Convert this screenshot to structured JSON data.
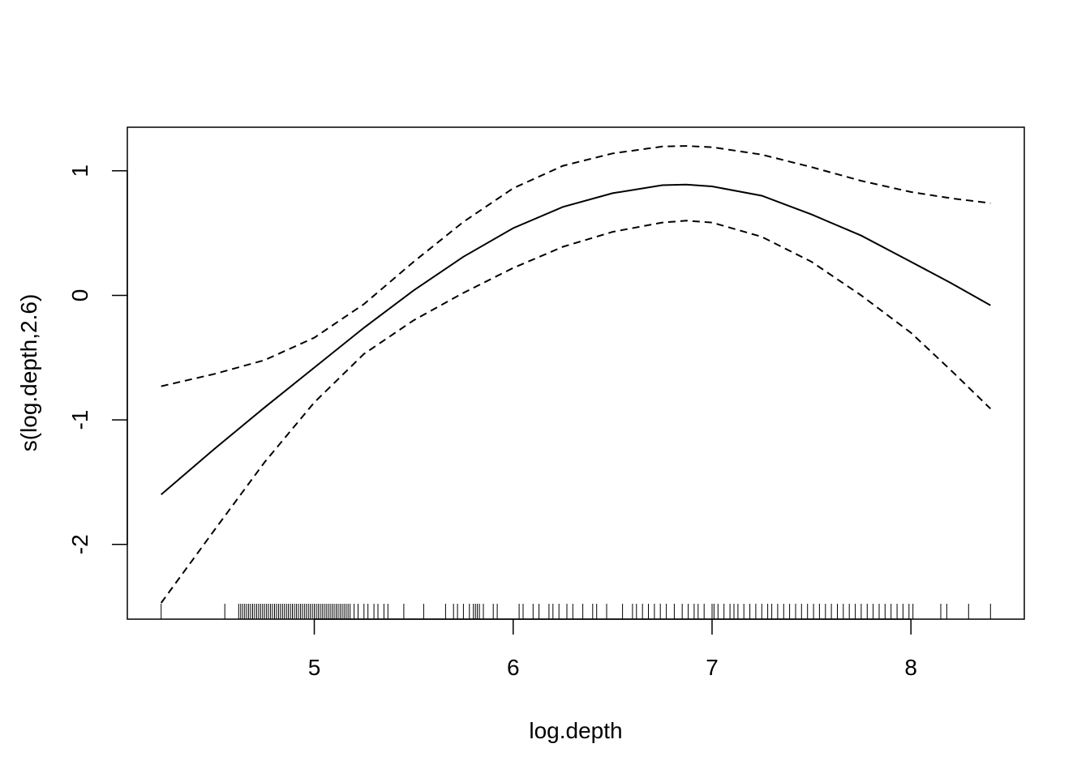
{
  "chart_data": {
    "type": "line",
    "title": "",
    "xlabel": "log.depth",
    "ylabel": "s(log.depth,2.6)",
    "xlim": [
      4.06,
      8.57
    ],
    "ylim": [
      -2.6,
      1.35
    ],
    "xticks": [
      5,
      6,
      7,
      8
    ],
    "xtick_labels": [
      "5",
      "6",
      "7",
      "8"
    ],
    "yticks": [
      -2,
      -1,
      0,
      1
    ],
    "ytick_labels": [
      "-2",
      "-1",
      "0",
      "1"
    ],
    "grid": false,
    "legend": "none",
    "series": [
      {
        "style": "solid",
        "x": [
          4.23,
          4.5,
          4.75,
          5.0,
          5.25,
          5.5,
          5.75,
          6.0,
          6.25,
          6.5,
          6.75,
          6.87,
          7.0,
          7.25,
          7.5,
          7.75,
          8.0,
          8.2,
          8.4
        ],
        "y": [
          -1.6,
          -1.23,
          -0.9,
          -0.58,
          -0.26,
          0.04,
          0.31,
          0.54,
          0.71,
          0.82,
          0.885,
          0.89,
          0.875,
          0.8,
          0.65,
          0.48,
          0.27,
          0.1,
          -0.08
        ]
      },
      {
        "style": "dashed",
        "x": [
          4.23,
          4.5,
          4.75,
          5.0,
          5.25,
          5.5,
          5.75,
          6.0,
          6.25,
          6.5,
          6.75,
          6.87,
          7.0,
          7.25,
          7.5,
          7.75,
          8.0,
          8.2,
          8.4
        ],
        "y": [
          -0.73,
          -0.63,
          -0.52,
          -0.34,
          -0.07,
          0.27,
          0.59,
          0.86,
          1.04,
          1.14,
          1.195,
          1.2,
          1.19,
          1.13,
          1.03,
          0.92,
          0.83,
          0.78,
          0.74
        ]
      },
      {
        "style": "dashed",
        "x": [
          4.23,
          4.5,
          4.75,
          5.0,
          5.25,
          5.5,
          5.75,
          6.0,
          6.25,
          6.5,
          6.75,
          6.87,
          7.0,
          7.25,
          7.5,
          7.75,
          8.0,
          8.2,
          8.4
        ],
        "y": [
          -2.47,
          -1.88,
          -1.34,
          -0.86,
          -0.47,
          -0.2,
          0.02,
          0.22,
          0.39,
          0.51,
          0.585,
          0.6,
          0.585,
          0.47,
          0.27,
          0.0,
          -0.3,
          -0.6,
          -0.91
        ]
      }
    ],
    "rug": [
      4.23,
      4.55,
      4.62,
      4.63,
      4.64,
      4.65,
      4.66,
      4.67,
      4.68,
      4.69,
      4.7,
      4.71,
      4.72,
      4.73,
      4.74,
      4.75,
      4.76,
      4.77,
      4.78,
      4.79,
      4.8,
      4.81,
      4.82,
      4.83,
      4.84,
      4.85,
      4.86,
      4.87,
      4.88,
      4.89,
      4.9,
      4.91,
      4.92,
      4.93,
      4.94,
      4.95,
      4.96,
      4.97,
      4.98,
      4.99,
      5.0,
      5.01,
      5.02,
      5.03,
      5.04,
      5.05,
      5.06,
      5.07,
      5.08,
      5.09,
      5.1,
      5.11,
      5.12,
      5.13,
      5.14,
      5.15,
      5.16,
      5.17,
      5.18,
      5.2,
      5.22,
      5.25,
      5.27,
      5.3,
      5.32,
      5.35,
      5.37,
      5.45,
      5.55,
      5.66,
      5.7,
      5.72,
      5.75,
      5.78,
      5.8,
      5.81,
      5.82,
      5.83,
      5.85,
      5.9,
      5.92,
      6.03,
      6.05,
      6.1,
      6.13,
      6.18,
      6.2,
      6.23,
      6.27,
      6.3,
      6.35,
      6.4,
      6.42,
      6.47,
      6.55,
      6.6,
      6.62,
      6.65,
      6.68,
      6.71,
      6.74,
      6.77,
      6.81,
      6.85,
      6.88,
      6.91,
      6.93,
      6.96,
      7.0,
      7.01,
      7.03,
      7.06,
      7.09,
      7.11,
      7.13,
      7.16,
      7.19,
      7.22,
      7.25,
      7.28,
      7.3,
      7.33,
      7.36,
      7.39,
      7.42,
      7.45,
      7.48,
      7.51,
      7.54,
      7.57,
      7.6,
      7.63,
      7.66,
      7.69,
      7.72,
      7.75,
      7.78,
      7.81,
      7.84,
      7.87,
      7.9,
      7.93,
      7.96,
      7.99,
      8.01,
      8.15,
      8.18,
      8.29,
      8.4
    ]
  }
}
